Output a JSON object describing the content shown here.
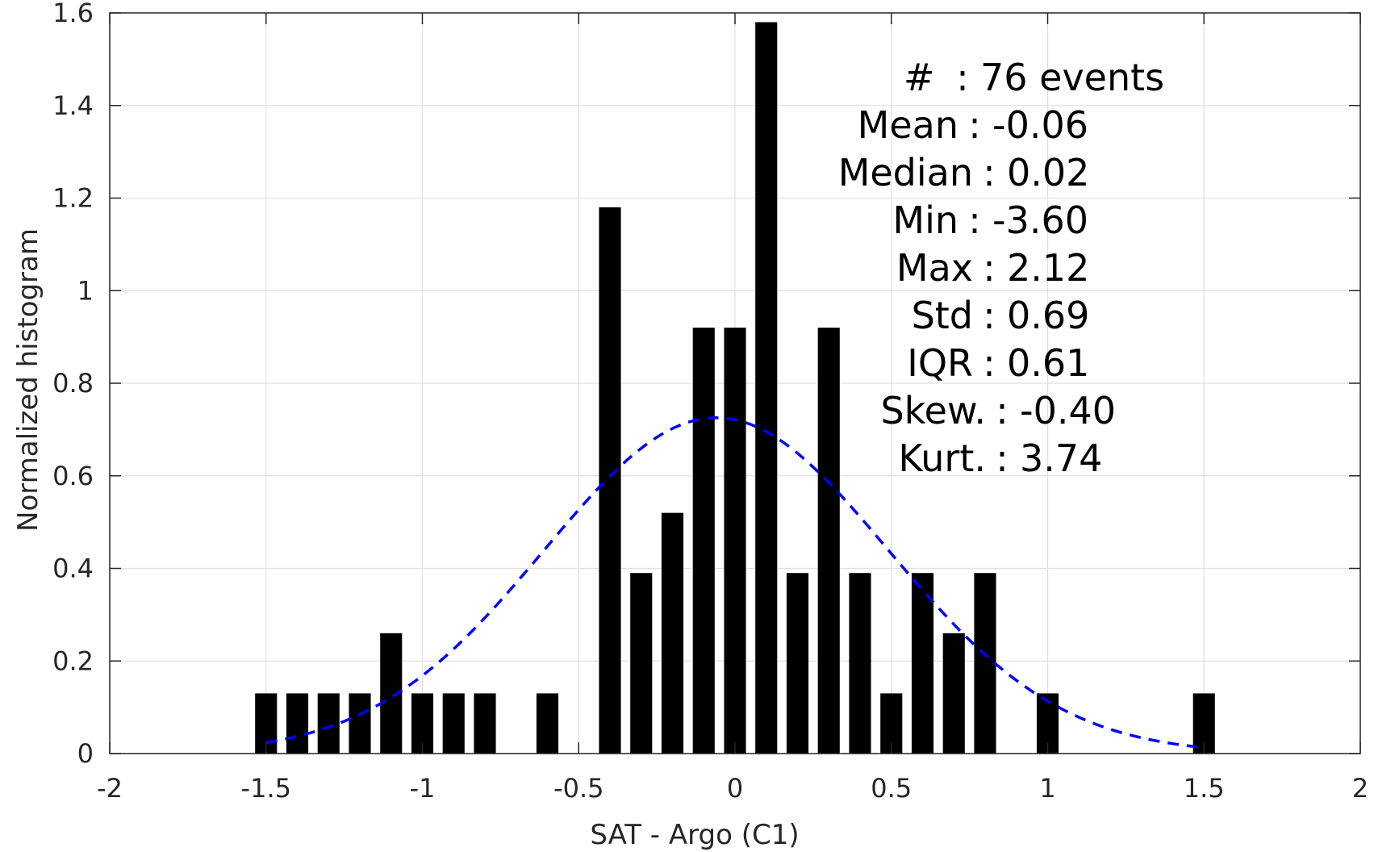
{
  "chart_data": {
    "type": "bar",
    "title": "",
    "xlabel": "SAT - Argo (C1)",
    "ylabel": "Normalized histogram",
    "xlim": [
      -2,
      2
    ],
    "ylim": [
      0,
      1.6
    ],
    "grid": true,
    "x_ticks": [
      "-2",
      "-1.5",
      "-1",
      "-0.5",
      "0",
      "0.5",
      "1",
      "1.5",
      "2"
    ],
    "y_ticks": [
      "0",
      "0.2",
      "0.4",
      "0.6",
      "0.8",
      "1",
      "1.2",
      "1.4",
      "1.6"
    ],
    "bar_width": 0.07,
    "bars": [
      {
        "x": -1.5,
        "value": 0.13
      },
      {
        "x": -1.4,
        "value": 0.13
      },
      {
        "x": -1.3,
        "value": 0.13
      },
      {
        "x": -1.2,
        "value": 0.13
      },
      {
        "x": -1.1,
        "value": 0.26
      },
      {
        "x": -1.0,
        "value": 0.13
      },
      {
        "x": -0.9,
        "value": 0.13
      },
      {
        "x": -0.8,
        "value": 0.13
      },
      {
        "x": -0.6,
        "value": 0.13
      },
      {
        "x": -0.4,
        "value": 1.18
      },
      {
        "x": -0.3,
        "value": 0.39
      },
      {
        "x": -0.2,
        "value": 0.52
      },
      {
        "x": -0.1,
        "value": 0.92
      },
      {
        "x": 0.0,
        "value": 0.92
      },
      {
        "x": 0.1,
        "value": 1.58
      },
      {
        "x": 0.2,
        "value": 0.39
      },
      {
        "x": 0.3,
        "value": 0.92
      },
      {
        "x": 0.4,
        "value": 0.39
      },
      {
        "x": 0.5,
        "value": 0.13
      },
      {
        "x": 0.6,
        "value": 0.39
      },
      {
        "x": 0.7,
        "value": 0.26
      },
      {
        "x": 0.8,
        "value": 0.39
      },
      {
        "x": 1.0,
        "value": 0.13
      },
      {
        "x": 1.5,
        "value": 0.13
      }
    ],
    "fit_curve": {
      "style": "dashed",
      "color": "#0000ff",
      "mean": -0.06,
      "std": 0.55,
      "x_range": [
        -1.5,
        1.5
      ]
    },
    "stats": [
      {
        "label": "#  ",
        "value": "76 events"
      },
      {
        "label": "Mean",
        "value": "-0.06"
      },
      {
        "label": "Median",
        "value": "0.02"
      },
      {
        "label": "Min",
        "value": "-3.60"
      },
      {
        "label": "Max",
        "value": "2.12"
      },
      {
        "label": "Std",
        "value": "0.69"
      },
      {
        "label": "IQR",
        "value": "0.61"
      },
      {
        "label": "Skew.",
        "value": "-0.40"
      },
      {
        "label": "Kurt.",
        "value": "3.74"
      }
    ],
    "colors": {
      "bars": "#000000",
      "grid": "#e0e0e0",
      "axis": "#262626"
    }
  }
}
